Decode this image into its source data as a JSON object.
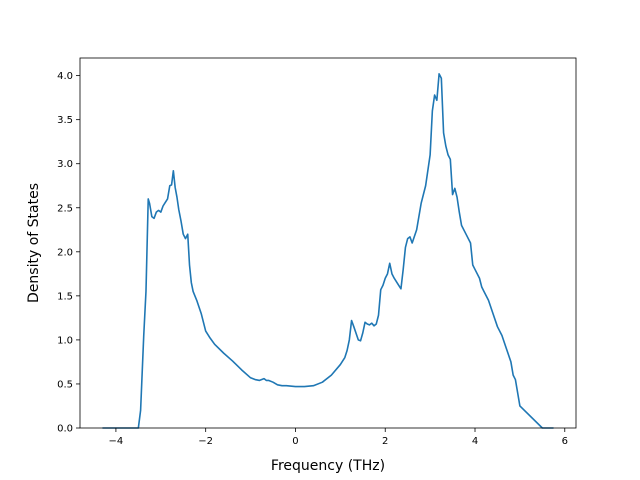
{
  "chart_data": {
    "type": "line",
    "title": "",
    "xlabel": "Frequency (THz)",
    "ylabel": "Density of States",
    "xlim": [
      -4.8,
      6.25
    ],
    "ylim": [
      0.0,
      4.2
    ],
    "xticks": [
      -4,
      -2,
      0,
      2,
      4,
      6
    ],
    "xtick_labels": [
      "−4",
      "−2",
      "0",
      "2",
      "4",
      "6"
    ],
    "yticks": [
      0.0,
      0.5,
      1.0,
      1.5,
      2.0,
      2.5,
      3.0,
      3.5,
      4.0
    ],
    "ytick_labels": [
      "0.0",
      "0.5",
      "1.0",
      "1.5",
      "2.0",
      "2.5",
      "3.0",
      "3.5",
      "4.0"
    ],
    "grid": false,
    "series": [
      {
        "color": "#1f77b4",
        "x": [
          -4.3,
          -3.5,
          -3.45,
          -3.38,
          -3.33,
          -3.28,
          -3.25,
          -3.2,
          -3.15,
          -3.1,
          -3.05,
          -3.0,
          -2.95,
          -2.9,
          -2.85,
          -2.8,
          -2.76,
          -2.72,
          -2.68,
          -2.64,
          -2.6,
          -2.55,
          -2.5,
          -2.45,
          -2.4,
          -2.36,
          -2.32,
          -2.28,
          -2.2,
          -2.1,
          -2.0,
          -1.9,
          -1.8,
          -1.6,
          -1.4,
          -1.2,
          -1.0,
          -0.9,
          -0.8,
          -0.7,
          -0.65,
          -0.6,
          -0.5,
          -0.4,
          -0.3,
          -0.2,
          0.0,
          0.2,
          0.4,
          0.6,
          0.8,
          1.0,
          1.1,
          1.15,
          1.2,
          1.25,
          1.3,
          1.4,
          1.45,
          1.5,
          1.55,
          1.6,
          1.65,
          1.7,
          1.75,
          1.8,
          1.85,
          1.9,
          1.95,
          2.0,
          2.05,
          2.1,
          2.15,
          2.2,
          2.3,
          2.35,
          2.4,
          2.45,
          2.5,
          2.55,
          2.6,
          2.7,
          2.8,
          2.9,
          3.0,
          3.05,
          3.1,
          3.15,
          3.2,
          3.25,
          3.3,
          3.35,
          3.4,
          3.45,
          3.5,
          3.55,
          3.6,
          3.65,
          3.7,
          3.8,
          3.9,
          3.95,
          4.0,
          4.1,
          4.15,
          4.2,
          4.3,
          4.4,
          4.5,
          4.6,
          4.7,
          4.8,
          4.85,
          4.9,
          5.0,
          5.5,
          5.75
        ],
        "y": [
          0.0,
          0.0,
          0.2,
          1.05,
          1.55,
          2.6,
          2.55,
          2.4,
          2.38,
          2.45,
          2.47,
          2.45,
          2.52,
          2.56,
          2.6,
          2.75,
          2.76,
          2.92,
          2.73,
          2.62,
          2.48,
          2.35,
          2.2,
          2.15,
          2.2,
          1.85,
          1.65,
          1.55,
          1.45,
          1.3,
          1.1,
          1.02,
          0.95,
          0.85,
          0.76,
          0.66,
          0.57,
          0.55,
          0.54,
          0.56,
          0.54,
          0.54,
          0.52,
          0.49,
          0.48,
          0.48,
          0.47,
          0.47,
          0.48,
          0.52,
          0.6,
          0.72,
          0.8,
          0.88,
          1.0,
          1.22,
          1.15,
          1.0,
          0.99,
          1.08,
          1.2,
          1.18,
          1.17,
          1.19,
          1.16,
          1.18,
          1.28,
          1.57,
          1.62,
          1.7,
          1.75,
          1.87,
          1.75,
          1.7,
          1.62,
          1.58,
          1.8,
          2.05,
          2.15,
          2.17,
          2.1,
          2.25,
          2.55,
          2.75,
          3.1,
          3.6,
          3.78,
          3.72,
          4.02,
          3.97,
          3.35,
          3.2,
          3.1,
          3.05,
          2.65,
          2.72,
          2.62,
          2.45,
          2.3,
          2.2,
          2.1,
          1.85,
          1.8,
          1.7,
          1.6,
          1.55,
          1.45,
          1.3,
          1.15,
          1.05,
          0.9,
          0.75,
          0.6,
          0.55,
          0.25,
          0.0,
          0.0
        ]
      }
    ]
  }
}
